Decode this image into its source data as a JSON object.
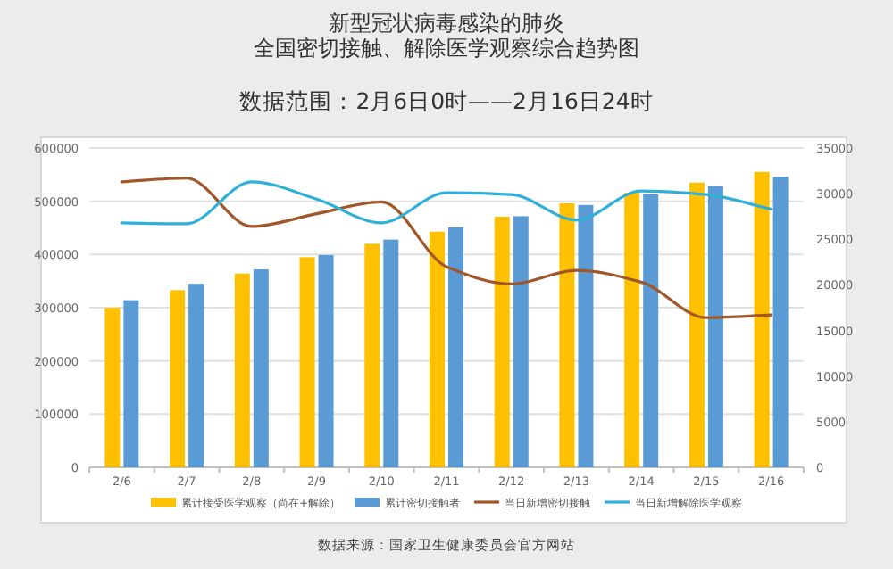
{
  "chart_data": {
    "type": "bar",
    "title": "新型冠状病毒感染的肺炎",
    "subtitle": "全国密切接触、解除医学观察综合趋势图",
    "categories": [
      "2/6",
      "2/7",
      "2/8",
      "2/9",
      "2/10",
      "2/11",
      "2/12",
      "2/13",
      "2/14",
      "2/15",
      "2/16"
    ],
    "series": [
      {
        "name": "累计接受医学观察（尚在+解除）",
        "color": "#ffc000",
        "values": [
          300000,
          333000,
          364000,
          395000,
          420000,
          443000,
          471000,
          496000,
          516000,
          535000,
          555000
        ]
      },
      {
        "name": "累计密切接触者",
        "color": "#5b9bd5",
        "values": [
          314000,
          345000,
          372000,
          399000,
          428000,
          451000,
          472000,
          493000,
          513000,
          529000,
          546000
        ]
      },
      {
        "name": "当日新增密切接触",
        "type": "line",
        "axis": "y2",
        "color": "#a0582a",
        "values": [
          31300,
          31700,
          26400,
          27800,
          29100,
          22000,
          20100,
          21600,
          20300,
          16400,
          16700
        ]
      },
      {
        "name": "当日新增解除医学观察",
        "type": "line",
        "axis": "y2",
        "color": "#30b0d8",
        "values": [
          26800,
          26700,
          31300,
          29400,
          26800,
          30100,
          29900,
          27100,
          30300,
          29900,
          28300
        ]
      }
    ],
    "ylim": [
      0,
      600000
    ],
    "yticks": [
      0,
      100000,
      200000,
      300000,
      400000,
      500000,
      600000
    ],
    "y2lim": [
      0,
      35000
    ],
    "y2ticks": [
      0,
      5000,
      10000,
      15000,
      20000,
      25000,
      30000,
      35000
    ],
    "grid": "y",
    "legend": "bottom",
    "annotations": [
      "数据范围：2月6日0时——2月16日24时",
      "数据来源：国家卫生健康委员会官方网站"
    ]
  }
}
